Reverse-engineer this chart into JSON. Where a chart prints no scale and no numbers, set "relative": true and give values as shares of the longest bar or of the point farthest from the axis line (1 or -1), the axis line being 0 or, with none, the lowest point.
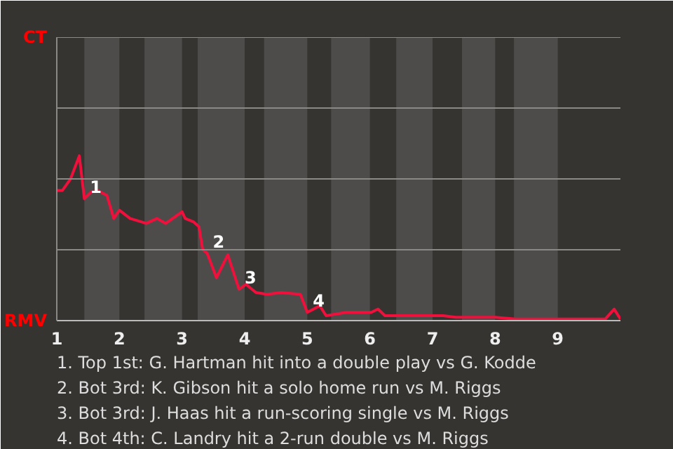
{
  "chart_data": {
    "type": "line",
    "relative": true,
    "x": [
      1,
      1.09,
      1.22,
      1.36,
      1.44,
      1.55,
      1.65,
      1.8,
      1.91,
      2,
      2.17,
      2.43,
      2.6,
      2.74,
      3,
      3.05,
      3.18,
      3.27,
      3.33,
      3.4,
      3.55,
      3.73,
      3.91,
      4.02,
      4.18,
      4.36,
      4.58,
      4.89,
      5,
      5.2,
      5.3,
      5.62,
      5.76,
      6.02,
      6.13,
      6.24,
      6.44,
      6.91,
      7.17,
      7.37,
      8,
      8.33,
      9.76,
      9.9,
      10
    ],
    "series": [
      {
        "color": "#f0103c",
        "values": [
          0.79,
          0.79,
          0.86,
          1,
          0.74,
          0.78,
          0.79,
          0.76,
          0.62,
          0.67,
          0.62,
          0.59,
          0.62,
          0.59,
          0.66,
          0.62,
          0.6,
          0.57,
          0.43,
          0.41,
          0.26,
          0.4,
          0.19,
          0.22,
          0.17,
          0.16,
          0.17,
          0.16,
          0.05,
          0.09,
          0.03,
          0.05,
          0.05,
          0.05,
          0.07,
          0.03,
          0.03,
          0.03,
          0.03,
          0.02,
          0.02,
          0.01,
          0.01,
          0.07,
          0.01
        ]
      }
    ],
    "xlim": [
      1,
      10
    ],
    "xticks": [
      1,
      2,
      3,
      4,
      5,
      6,
      7,
      8,
      9
    ],
    "ref_lines": [
      {
        "axis": "y",
        "value": 0.43,
        "color": "#8a8986"
      },
      {
        "axis": "y",
        "value": 0.86,
        "color": "#8a8986"
      },
      {
        "axis": "y",
        "value": 1.29,
        "color": "#8a8986"
      },
      {
        "axis": "y",
        "value": 1.72,
        "color": "#8a8986"
      }
    ],
    "bands": [
      {
        "axis": "x",
        "from": 1.44,
        "to": 2,
        "color": "#4d4c4a"
      },
      {
        "axis": "x",
        "from": 2.4,
        "to": 3,
        "color": "#4d4c4a"
      },
      {
        "axis": "x",
        "from": 3.25,
        "to": 4,
        "color": "#4d4c4a"
      },
      {
        "axis": "x",
        "from": 4.31,
        "to": 5,
        "color": "#4d4c4a"
      },
      {
        "axis": "x",
        "from": 5.38,
        "to": 6,
        "color": "#4d4c4a"
      },
      {
        "axis": "x",
        "from": 6.42,
        "to": 7,
        "color": "#4d4c4a"
      },
      {
        "axis": "x",
        "from": 7.47,
        "to": 8,
        "color": "#4d4c4a"
      },
      {
        "axis": "x",
        "from": 8.3,
        "to": 9,
        "color": "#4d4c4a"
      }
    ],
    "annotations": [
      "CT",
      "RMV",
      {
        "text": "1",
        "x": 1.44,
        "y": 0.74
      },
      {
        "text": "2",
        "x": 3.4,
        "y": 0.41
      },
      {
        "text": "3",
        "x": 3.91,
        "y": 0.19
      },
      {
        "text": "4",
        "x": 5,
        "y": 0.05
      },
      "1. Top 1st: G. Hartman hit into a double play vs G. Kodde",
      "2. Bot 3rd: K. Gibson hit a solo home run vs M. Riggs",
      "3. Bot 3rd: J. Haas hit a run-scoring single vs M. Riggs",
      "4. Bot 4th: C. Landry hit a 2-run double vs M. Riggs"
    ]
  }
}
